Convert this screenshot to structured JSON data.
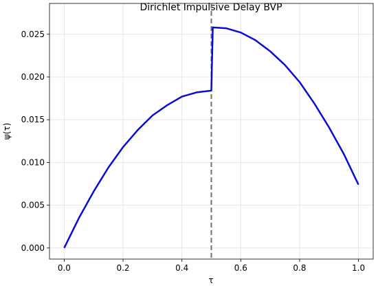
{
  "chart_data": {
    "type": "line",
    "title": "Dirichlet Impulsive Delay BVP",
    "x_label": "τ",
    "y_label": "ψ(τ)",
    "x": [
      0,
      0.05,
      0.1,
      0.15,
      0.2,
      0.25,
      0.3,
      0.35,
      0.4,
      0.45,
      0.5,
      0.505,
      0.55,
      0.6,
      0.65,
      0.7,
      0.75,
      0.8,
      0.85,
      0.9,
      0.95,
      1.0
    ],
    "series": [
      {
        "color": "#0a0ad8",
        "values": [
          0,
          0.0035,
          0.0066,
          0.0094,
          0.0118,
          0.0138,
          0.0155,
          0.0167,
          0.0177,
          0.0182,
          0.0184,
          0.0258,
          0.0257,
          0.0252,
          0.0243,
          0.023,
          0.0214,
          0.0194,
          0.0169,
          0.0141,
          0.011,
          0.0074
        ]
      }
    ],
    "vline": 0.5,
    "vline_color": "#707070",
    "xlim": [
      -0.05,
      1.05
    ],
    "ylim": [
      -0.0013,
      0.0286
    ],
    "xticks": [
      {
        "value": 0,
        "label": "0.0"
      },
      0.2,
      0.4,
      0.6,
      0.8,
      {
        "value": 1,
        "label": "1.0"
      }
    ],
    "yticks": [
      {
        "value": 0,
        "label": "0.000"
      },
      0.005,
      {
        "value": 0.01,
        "label": "0.010"
      },
      0.015,
      {
        "value": 0.02,
        "label": "0.020"
      },
      0.025
    ],
    "grid": true
  }
}
